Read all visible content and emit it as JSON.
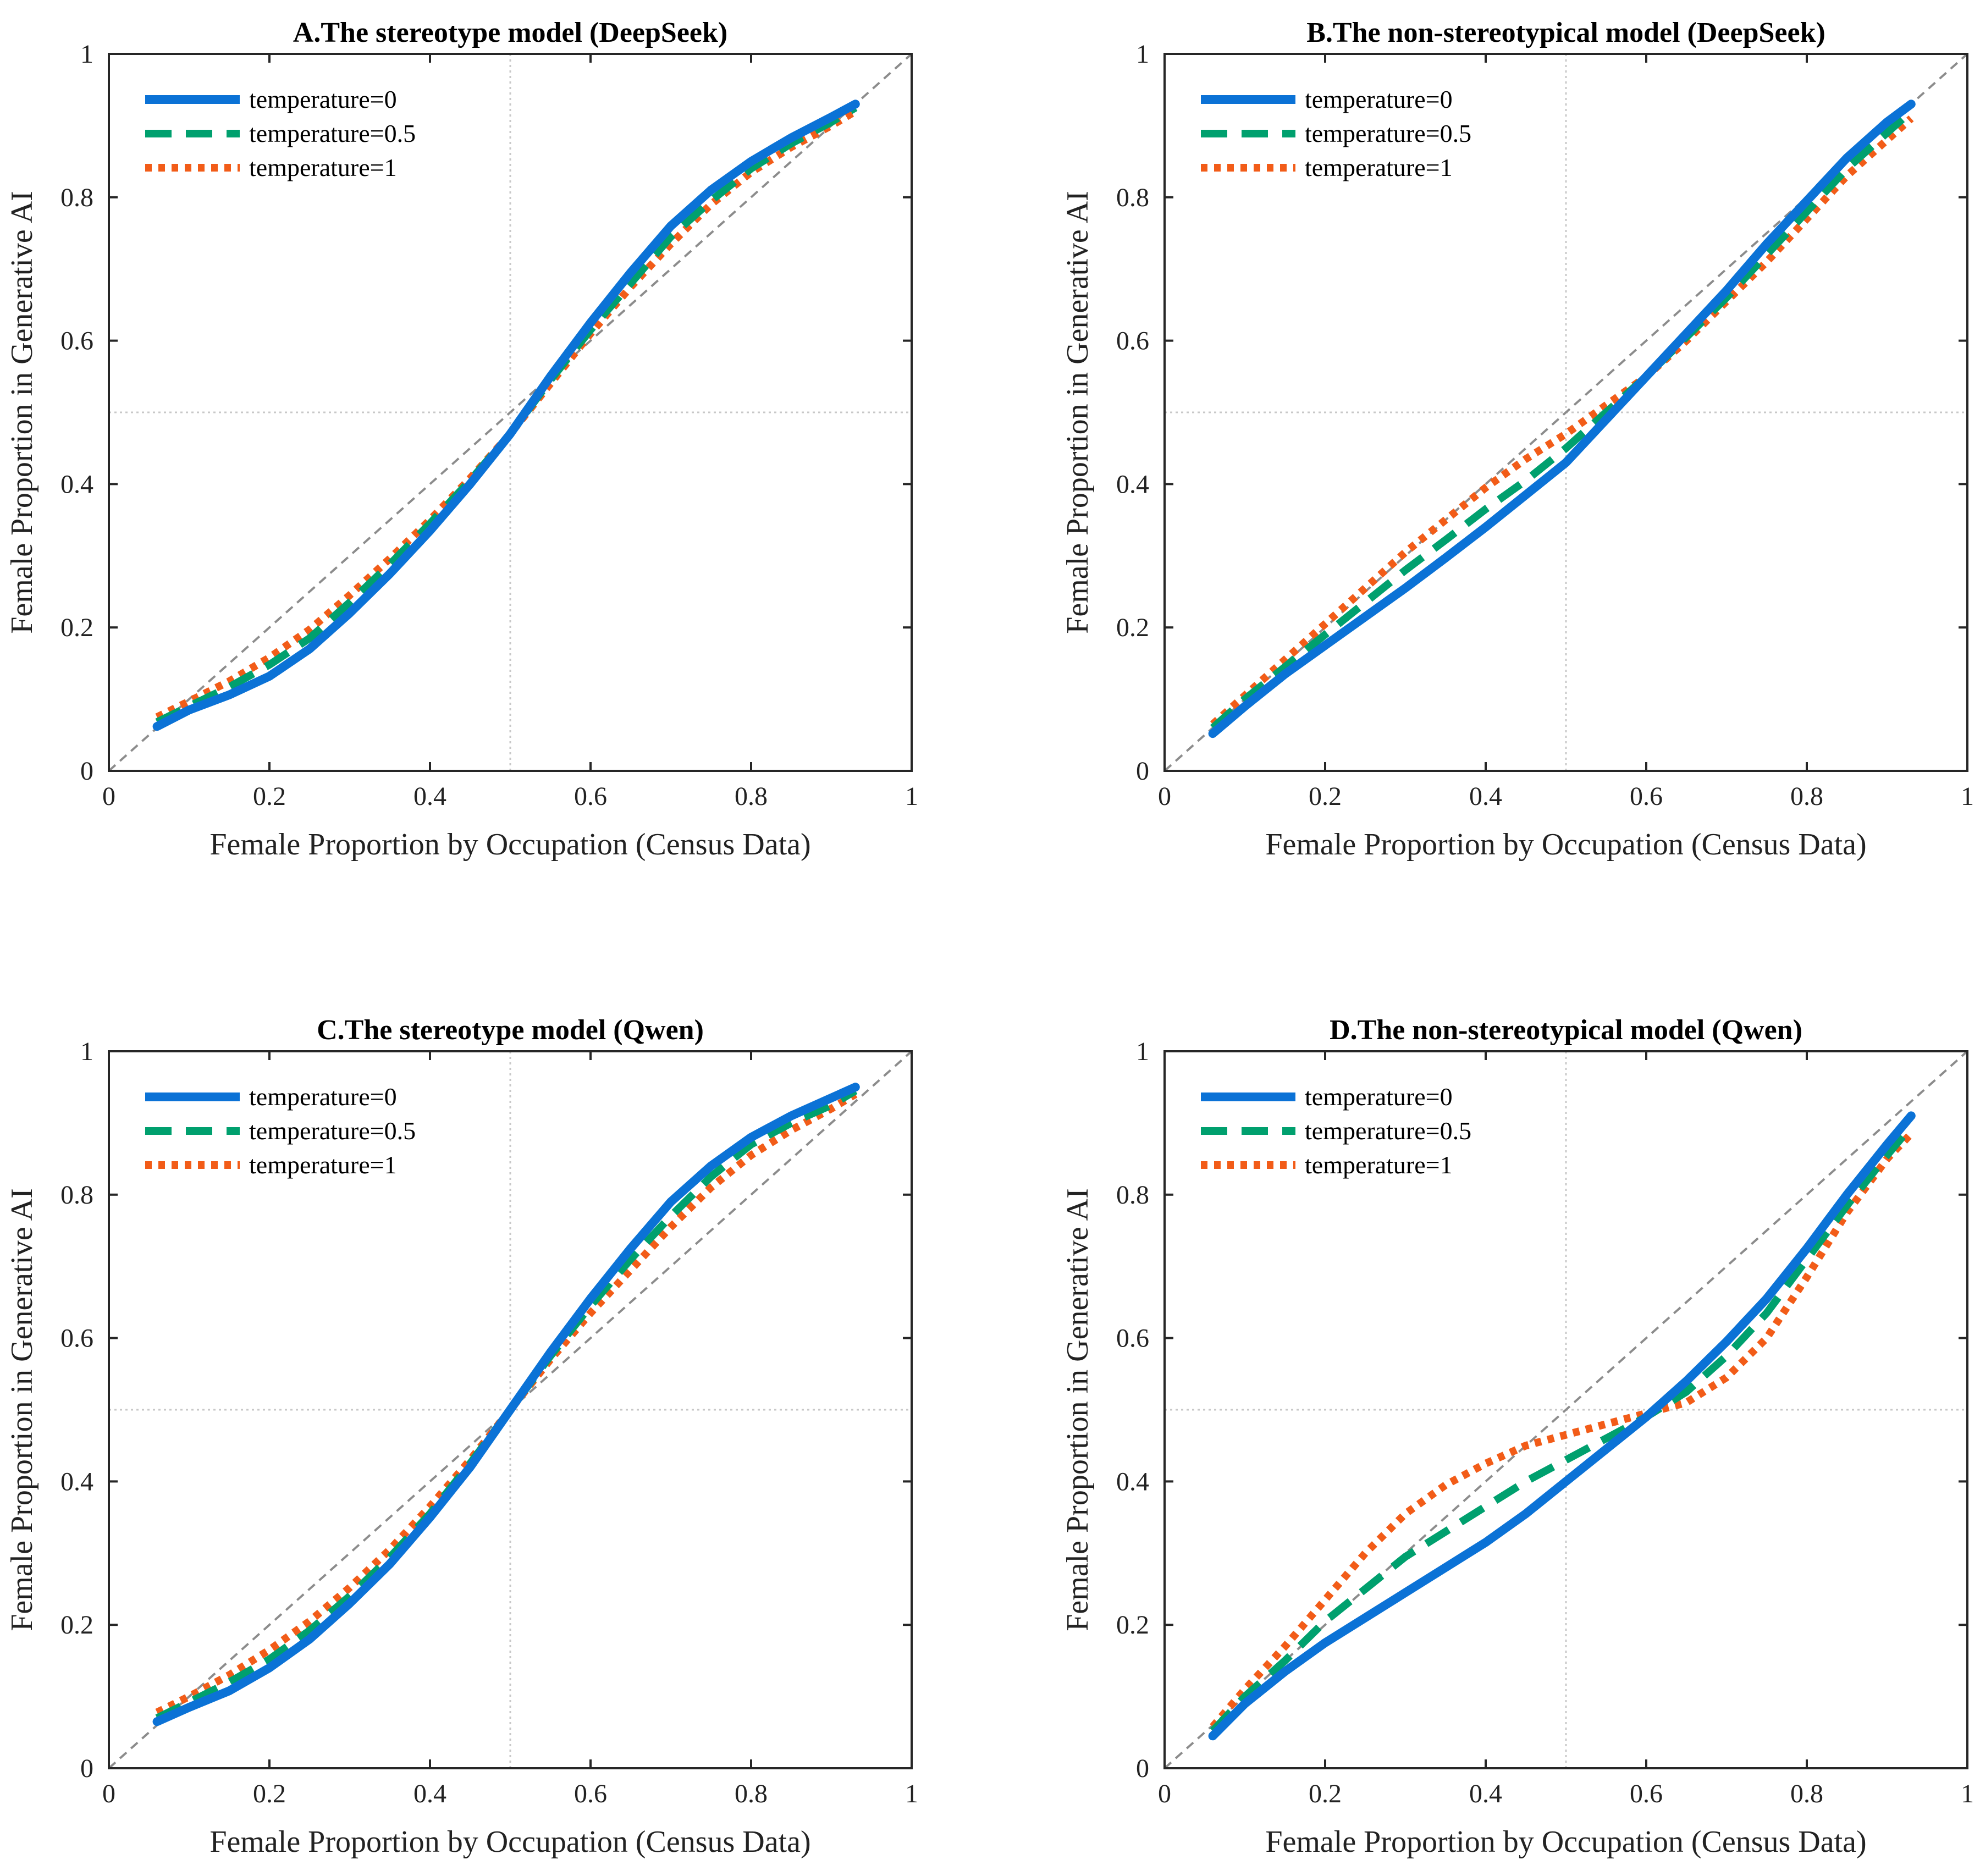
{
  "figure": {
    "background": "#ffffff"
  },
  "style": {
    "series_colors": [
      "#0b72d6",
      "#00a06e",
      "#f25c18"
    ],
    "series_dash": [
      "solid",
      "dashed",
      "dotted"
    ],
    "diagonal_color": "#8c8c8c",
    "midline_color": "#c8c8c8"
  },
  "chart_data": [
    {
      "type": "line",
      "panel": "A",
      "title": "A.The stereotype model (DeepSeek)",
      "xlabel": "Female Proportion by Occupation (Census Data)",
      "ylabel": "Female Proportion in Generative AI",
      "xlim": [
        0,
        1
      ],
      "ylim": [
        0,
        1
      ],
      "xticks": [
        "0",
        "0.2",
        "0.4",
        "0.6",
        "0.8",
        "1"
      ],
      "yticks": [
        "0",
        "0.2",
        "0.4",
        "0.6",
        "0.8",
        "1"
      ],
      "reference_lines": {
        "diagonal": "y = x",
        "vertical": 0.5,
        "horizontal": 0.5
      },
      "legend": "top-left",
      "x": [
        0.06,
        0.1,
        0.15,
        0.2,
        0.25,
        0.3,
        0.35,
        0.4,
        0.45,
        0.5,
        0.55,
        0.6,
        0.65,
        0.7,
        0.75,
        0.8,
        0.85,
        0.9,
        0.93
      ],
      "series": [
        {
          "name": "temperature=0",
          "values": [
            0.062,
            0.085,
            0.106,
            0.132,
            0.17,
            0.22,
            0.275,
            0.335,
            0.4,
            0.47,
            0.55,
            0.625,
            0.695,
            0.76,
            0.81,
            0.85,
            0.883,
            0.912,
            0.93
          ]
        },
        {
          "name": "temperature=0.5",
          "values": [
            0.068,
            0.09,
            0.117,
            0.148,
            0.185,
            0.235,
            0.288,
            0.345,
            0.405,
            0.47,
            0.545,
            0.615,
            0.68,
            0.745,
            0.795,
            0.84,
            0.875,
            0.905,
            0.925
          ]
        },
        {
          "name": "temperature=1",
          "values": [
            0.075,
            0.097,
            0.125,
            0.158,
            0.197,
            0.245,
            0.296,
            0.35,
            0.408,
            0.47,
            0.54,
            0.61,
            0.675,
            0.735,
            0.79,
            0.835,
            0.87,
            0.9,
            0.92
          ]
        }
      ]
    },
    {
      "type": "line",
      "panel": "B",
      "title": "B.The non-stereotypical model (DeepSeek)",
      "xlabel": "Female Proportion by Occupation (Census Data)",
      "ylabel": "Female Proportion in Generative AI",
      "xlim": [
        0,
        1
      ],
      "ylim": [
        0,
        1
      ],
      "xticks": [
        "0",
        "0.2",
        "0.4",
        "0.6",
        "0.8",
        "1"
      ],
      "yticks": [
        "0",
        "0.2",
        "0.4",
        "0.6",
        "0.8",
        "1"
      ],
      "reference_lines": {
        "diagonal": "y = x",
        "vertical": 0.5,
        "horizontal": 0.5
      },
      "legend": "top-left",
      "x": [
        0.06,
        0.1,
        0.15,
        0.2,
        0.25,
        0.3,
        0.35,
        0.4,
        0.45,
        0.5,
        0.55,
        0.6,
        0.65,
        0.7,
        0.75,
        0.8,
        0.85,
        0.9,
        0.93
      ],
      "series": [
        {
          "name": "temperature=0",
          "values": [
            0.052,
            0.09,
            0.135,
            0.175,
            0.215,
            0.255,
            0.297,
            0.34,
            0.385,
            0.43,
            0.49,
            0.55,
            0.61,
            0.67,
            0.735,
            0.795,
            0.855,
            0.905,
            0.93
          ]
        },
        {
          "name": "temperature=0.5",
          "values": [
            0.06,
            0.1,
            0.145,
            0.19,
            0.235,
            0.28,
            0.322,
            0.365,
            0.405,
            0.45,
            0.5,
            0.55,
            0.605,
            0.66,
            0.72,
            0.78,
            0.84,
            0.89,
            0.92
          ]
        },
        {
          "name": "temperature=1",
          "values": [
            0.065,
            0.105,
            0.155,
            0.205,
            0.255,
            0.305,
            0.35,
            0.395,
            0.435,
            0.47,
            0.51,
            0.55,
            0.6,
            0.655,
            0.71,
            0.77,
            0.83,
            0.88,
            0.91
          ]
        }
      ]
    },
    {
      "type": "line",
      "panel": "C",
      "title": "C.The stereotype model (Qwen)",
      "xlabel": "Female Proportion by Occupation (Census Data)",
      "ylabel": "Female Proportion in Generative AI",
      "xlim": [
        0,
        1
      ],
      "ylim": [
        0,
        1
      ],
      "xticks": [
        "0",
        "0.2",
        "0.4",
        "0.6",
        "0.8",
        "1"
      ],
      "yticks": [
        "0",
        "0.2",
        "0.4",
        "0.6",
        "0.8",
        "1"
      ],
      "reference_lines": {
        "diagonal": "y = x",
        "vertical": 0.5,
        "horizontal": 0.5
      },
      "legend": "top-left",
      "x": [
        0.06,
        0.1,
        0.15,
        0.2,
        0.25,
        0.3,
        0.35,
        0.4,
        0.45,
        0.5,
        0.55,
        0.6,
        0.65,
        0.7,
        0.75,
        0.8,
        0.85,
        0.9,
        0.93
      ],
      "series": [
        {
          "name": "temperature=0",
          "values": [
            0.065,
            0.085,
            0.108,
            0.14,
            0.18,
            0.23,
            0.285,
            0.35,
            0.42,
            0.5,
            0.58,
            0.655,
            0.725,
            0.79,
            0.84,
            0.88,
            0.91,
            0.935,
            0.95
          ]
        },
        {
          "name": "temperature=0.5",
          "values": [
            0.07,
            0.092,
            0.12,
            0.152,
            0.192,
            0.24,
            0.294,
            0.355,
            0.425,
            0.5,
            0.575,
            0.645,
            0.71,
            0.77,
            0.825,
            0.87,
            0.9,
            0.925,
            0.945
          ]
        },
        {
          "name": "temperature=1",
          "values": [
            0.078,
            0.1,
            0.13,
            0.165,
            0.205,
            0.252,
            0.305,
            0.365,
            0.43,
            0.5,
            0.57,
            0.635,
            0.695,
            0.755,
            0.81,
            0.855,
            0.89,
            0.92,
            0.94
          ]
        }
      ]
    },
    {
      "type": "line",
      "panel": "D",
      "title": "D.The non-stereotypical model (Qwen)",
      "xlabel": "Female Proportion by Occupation (Census Data)",
      "ylabel": "Female Proportion in Generative AI",
      "xlim": [
        0,
        1
      ],
      "ylim": [
        0,
        1
      ],
      "xticks": [
        "0",
        "0.2",
        "0.4",
        "0.6",
        "0.8",
        "1"
      ],
      "yticks": [
        "0",
        "0.2",
        "0.4",
        "0.6",
        "0.8",
        "1"
      ],
      "reference_lines": {
        "diagonal": "y = x",
        "vertical": 0.5,
        "horizontal": 0.5
      },
      "legend": "top-left",
      "x": [
        0.06,
        0.1,
        0.15,
        0.2,
        0.25,
        0.3,
        0.35,
        0.4,
        0.45,
        0.5,
        0.55,
        0.6,
        0.65,
        0.7,
        0.75,
        0.8,
        0.85,
        0.9,
        0.93
      ],
      "series": [
        {
          "name": "temperature=0",
          "values": [
            0.045,
            0.09,
            0.135,
            0.175,
            0.21,
            0.245,
            0.28,
            0.315,
            0.355,
            0.4,
            0.445,
            0.49,
            0.54,
            0.595,
            0.655,
            0.725,
            0.8,
            0.87,
            0.91
          ]
        },
        {
          "name": "temperature=0.5",
          "values": [
            0.052,
            0.1,
            0.15,
            0.205,
            0.25,
            0.295,
            0.33,
            0.365,
            0.4,
            0.43,
            0.46,
            0.49,
            0.525,
            0.575,
            0.635,
            0.71,
            0.785,
            0.855,
            0.895
          ]
        },
        {
          "name": "temperature=1",
          "values": [
            0.058,
            0.11,
            0.17,
            0.235,
            0.3,
            0.355,
            0.395,
            0.425,
            0.45,
            0.465,
            0.48,
            0.495,
            0.51,
            0.545,
            0.6,
            0.685,
            0.775,
            0.85,
            0.885
          ]
        }
      ]
    }
  ]
}
